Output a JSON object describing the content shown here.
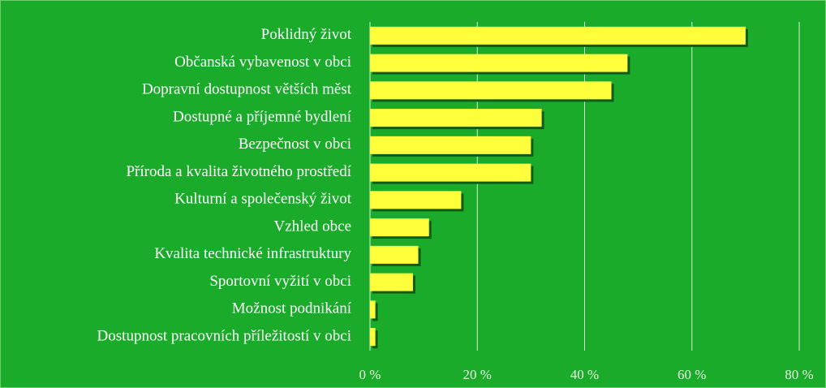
{
  "chart_data": {
    "type": "barh",
    "categories": [
      "Poklidný život",
      "Občanská vybavenost v obci",
      "Dopravní dostupnost větších měst",
      "Dostupné a příjemné bydlení",
      "Bezpečnost v obci",
      "Příroda a kvalita životného prostředí",
      "Kulturní a společenský život",
      "Vzhled obce",
      "Kvalita technické infrastruktury",
      "Sportovní vyžití v obci",
      "Možnost podnikání",
      "Dostupnost pracovních příležitostí v obci"
    ],
    "values": [
      70,
      48,
      45,
      32,
      30,
      30,
      17,
      11,
      9,
      8,
      1,
      1
    ],
    "color": "#ffff3c",
    "xlim": [
      0,
      80
    ],
    "xticks": [
      {
        "value": 0,
        "label": "0 %"
      },
      {
        "value": 20,
        "label": "20 %"
      },
      {
        "value": 40,
        "label": "40 %"
      },
      {
        "value": 60,
        "label": "60 %"
      },
      {
        "value": 80,
        "label": "80 %"
      }
    ],
    "grid": true
  }
}
